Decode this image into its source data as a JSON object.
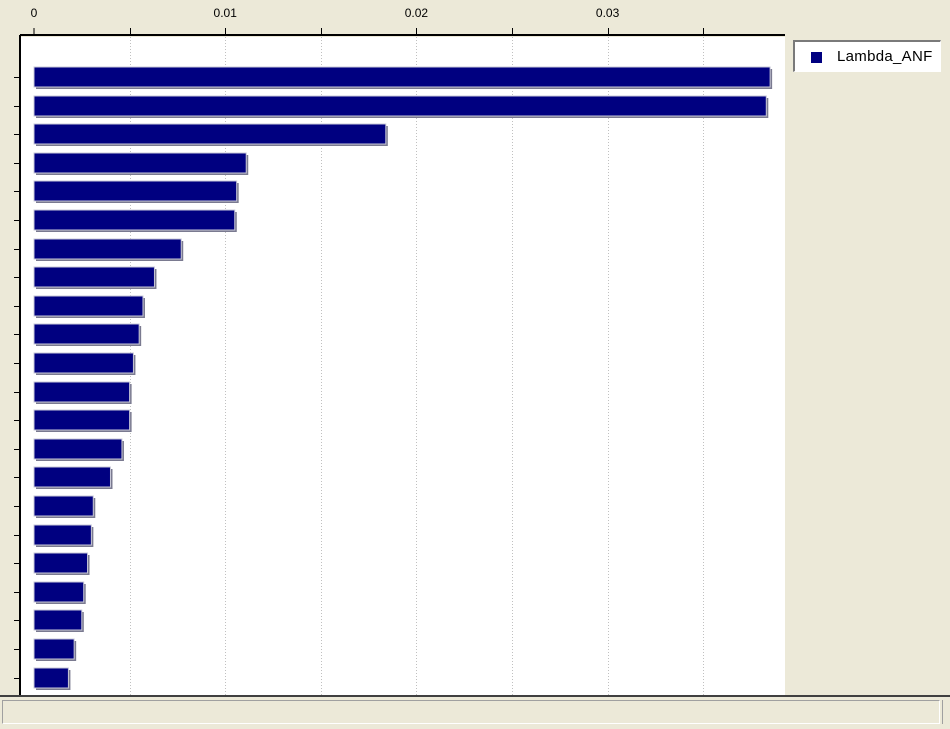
{
  "chart_data": {
    "type": "bar",
    "orientation": "horizontal",
    "title": "",
    "xlabel": "",
    "ylabel": "",
    "xlim": [
      0,
      0.039
    ],
    "x_ticks": [
      "0",
      "0.01",
      "0.02",
      "0.03"
    ],
    "grid": true,
    "legend_position": "top-right",
    "series": [
      {
        "name": "Lambda_ANF",
        "color": "#000080",
        "values": [
          0.0385,
          0.0383,
          0.0184,
          0.0111,
          0.0106,
          0.0105,
          0.0077,
          0.0063,
          0.0057,
          0.0055,
          0.0052,
          0.005,
          0.005,
          0.0046,
          0.004,
          0.0031,
          0.003,
          0.0028,
          0.0026,
          0.0025,
          0.0021,
          0.0018
        ]
      }
    ]
  },
  "legend": {
    "label": "Lambda_ANF"
  },
  "colors": {
    "background": "#ece9d8",
    "plot_background": "#ffffff",
    "bar": "#000080",
    "grid": "#c0c0c0"
  }
}
